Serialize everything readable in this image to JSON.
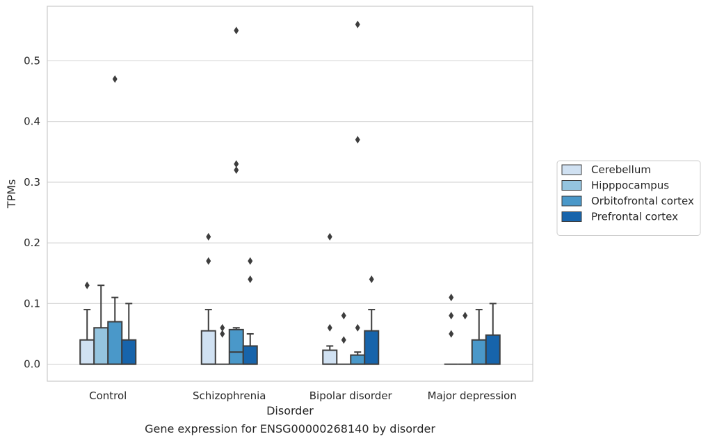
{
  "chart_data": {
    "type": "boxplot",
    "caption": "Gene expression for ENSG00000268140 by disorder",
    "xlabel": "Disorder",
    "ylabel": "TPMs",
    "ylim": [
      -0.028,
      0.59
    ],
    "yticks": [
      0.0,
      0.1,
      0.2,
      0.3,
      0.4,
      0.5
    ],
    "ytick_labels": [
      "0.0",
      "0.1",
      "0.2",
      "0.3",
      "0.4",
      "0.5"
    ],
    "grid": true,
    "legend_position": "right",
    "categories": [
      "Control",
      "Schizophrenia",
      "Bipolar disorder",
      "Major depression"
    ],
    "series": [
      {
        "name": "Cerebellum",
        "color": "#d0e1f2",
        "boxes": [
          {
            "q1": 0.0,
            "median": 0.0,
            "q3": 0.04,
            "whisker_low": 0.0,
            "whisker_high": 0.09,
            "outliers": [
              0.13
            ]
          },
          {
            "q1": 0.0,
            "median": 0.0,
            "q3": 0.055,
            "whisker_low": 0.0,
            "whisker_high": 0.09,
            "outliers": [
              0.17,
              0.21
            ]
          },
          {
            "q1": 0.0,
            "median": 0.0,
            "q3": 0.023,
            "whisker_low": 0.0,
            "whisker_high": 0.03,
            "outliers": [
              0.06,
              0.21
            ]
          },
          {
            "q1": 0.0,
            "median": 0.0,
            "q3": 0.0,
            "whisker_low": 0.0,
            "whisker_high": 0.0,
            "outliers": [
              0.05,
              0.08,
              0.11
            ]
          }
        ]
      },
      {
        "name": "Hipppocampus",
        "color": "#94c4df",
        "boxes": [
          {
            "q1": 0.0,
            "median": 0.0,
            "q3": 0.06,
            "whisker_low": 0.0,
            "whisker_high": 0.13,
            "outliers": []
          },
          {
            "q1": 0.0,
            "median": 0.0,
            "q3": 0.0,
            "whisker_low": 0.0,
            "whisker_high": 0.0,
            "outliers": [
              0.05,
              0.06
            ]
          },
          {
            "q1": 0.0,
            "median": 0.0,
            "q3": 0.0,
            "whisker_low": 0.0,
            "whisker_high": 0.0,
            "outliers": [
              0.04,
              0.08
            ]
          },
          {
            "q1": 0.0,
            "median": 0.0,
            "q3": 0.0,
            "whisker_low": 0.0,
            "whisker_high": 0.0,
            "outliers": [
              0.08
            ]
          }
        ]
      },
      {
        "name": "Orbitofrontal cortex",
        "color": "#4a98c9",
        "boxes": [
          {
            "q1": 0.0,
            "median": 0.0,
            "q3": 0.07,
            "whisker_low": 0.0,
            "whisker_high": 0.11,
            "outliers": [
              0.47
            ]
          },
          {
            "q1": 0.0,
            "median": 0.02,
            "q3": 0.057,
            "whisker_low": 0.0,
            "whisker_high": 0.06,
            "outliers": [
              0.32,
              0.33,
              0.55
            ]
          },
          {
            "q1": 0.0,
            "median": 0.0,
            "q3": 0.015,
            "whisker_low": 0.0,
            "whisker_high": 0.02,
            "outliers": [
              0.06,
              0.37,
              0.56
            ]
          },
          {
            "q1": 0.0,
            "median": 0.0,
            "q3": 0.04,
            "whisker_low": 0.0,
            "whisker_high": 0.09,
            "outliers": []
          }
        ]
      },
      {
        "name": "Prefrontal cortex",
        "color": "#1764ab",
        "boxes": [
          {
            "q1": 0.0,
            "median": 0.0,
            "q3": 0.04,
            "whisker_low": 0.0,
            "whisker_high": 0.1,
            "outliers": []
          },
          {
            "q1": 0.0,
            "median": 0.0,
            "q3": 0.03,
            "whisker_low": 0.0,
            "whisker_high": 0.05,
            "outliers": [
              0.14,
              0.17
            ]
          },
          {
            "q1": 0.0,
            "median": 0.0,
            "q3": 0.055,
            "whisker_low": 0.0,
            "whisker_high": 0.09,
            "outliers": [
              0.14
            ]
          },
          {
            "q1": 0.0,
            "median": 0.0,
            "q3": 0.048,
            "whisker_low": 0.0,
            "whisker_high": 0.1,
            "outliers": []
          }
        ]
      }
    ]
  }
}
